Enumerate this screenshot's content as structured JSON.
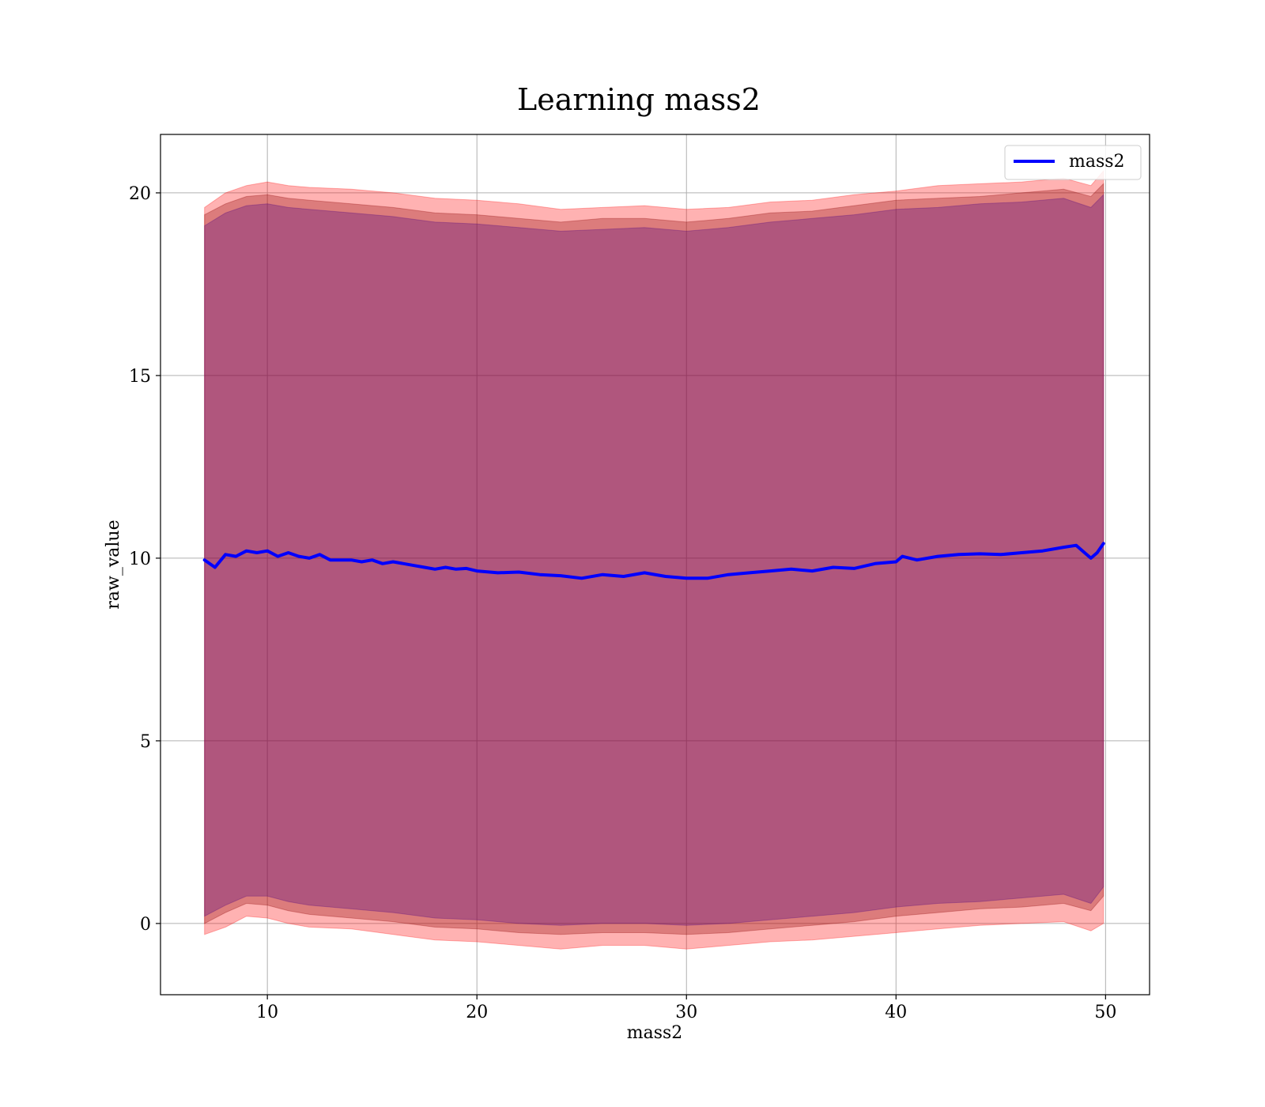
{
  "chart_data": {
    "type": "line",
    "title": "Learning mass2",
    "xlabel": "mass2",
    "ylabel": "raw_value",
    "xlim": [
      4.9,
      52.1
    ],
    "ylim": [
      -1.95,
      21.6
    ],
    "xticks": [
      10,
      20,
      30,
      40,
      50
    ],
    "yticks": [
      0,
      5,
      10,
      15,
      20
    ],
    "xtick_labels": [
      "10",
      "20",
      "30",
      "40",
      "50"
    ],
    "ytick_labels": [
      "0",
      "5",
      "10",
      "15",
      "20"
    ],
    "grid": true,
    "legend_position": "top-right",
    "series": [
      {
        "name": "mass2",
        "color": "#0000ff",
        "x": [
          7.0,
          7.5,
          8.0,
          8.5,
          9.0,
          9.5,
          10.0,
          10.5,
          11.0,
          11.5,
          12.0,
          12.5,
          13.0,
          13.5,
          14.0,
          14.5,
          15.0,
          15.5,
          16.0,
          16.5,
          17.0,
          17.5,
          18.0,
          18.5,
          19.0,
          19.5,
          20.0,
          21.0,
          22.0,
          23.0,
          24.0,
          25.0,
          26.0,
          27.0,
          28.0,
          29.0,
          30.0,
          31.0,
          32.0,
          33.0,
          34.0,
          35.0,
          36.0,
          37.0,
          38.0,
          39.0,
          40.0,
          40.3,
          41.0,
          42.0,
          43.0,
          44.0,
          45.0,
          46.0,
          47.0,
          48.0,
          48.6,
          49.0,
          49.3,
          49.6,
          49.9
        ],
        "values": [
          9.95,
          9.75,
          10.1,
          10.05,
          10.2,
          10.15,
          10.2,
          10.05,
          10.15,
          10.05,
          10.0,
          10.1,
          9.95,
          9.95,
          9.95,
          9.9,
          9.95,
          9.85,
          9.9,
          9.85,
          9.8,
          9.75,
          9.7,
          9.75,
          9.7,
          9.72,
          9.65,
          9.6,
          9.62,
          9.55,
          9.52,
          9.45,
          9.55,
          9.5,
          9.6,
          9.5,
          9.45,
          9.45,
          9.55,
          9.6,
          9.65,
          9.7,
          9.65,
          9.75,
          9.72,
          9.85,
          9.9,
          10.05,
          9.95,
          10.05,
          10.1,
          10.12,
          10.1,
          10.15,
          10.2,
          10.3,
          10.35,
          10.15,
          10.0,
          10.15,
          10.4
        ]
      }
    ],
    "bands": [
      {
        "color": "#ff0000",
        "opacity": 0.3,
        "x": [
          7.0,
          8.0,
          9.0,
          10.0,
          11.0,
          12.0,
          14.0,
          16.0,
          18.0,
          20.0,
          22.0,
          24.0,
          26.0,
          28.0,
          30.0,
          32.0,
          34.0,
          36.0,
          38.0,
          40.0,
          42.0,
          44.0,
          46.0,
          48.0,
          49.3,
          49.9
        ],
        "upper": [
          19.6,
          20.0,
          20.2,
          20.3,
          20.2,
          20.15,
          20.1,
          20.0,
          19.85,
          19.8,
          19.7,
          19.55,
          19.6,
          19.65,
          19.55,
          19.6,
          19.75,
          19.8,
          19.95,
          20.05,
          20.2,
          20.25,
          20.3,
          20.4,
          20.2,
          20.6
        ],
        "lower": [
          -0.3,
          -0.1,
          0.2,
          0.15,
          0.0,
          -0.1,
          -0.15,
          -0.3,
          -0.45,
          -0.5,
          -0.6,
          -0.7,
          -0.6,
          -0.6,
          -0.7,
          -0.6,
          -0.5,
          -0.45,
          -0.35,
          -0.25,
          -0.15,
          -0.05,
          0.0,
          0.05,
          -0.2,
          0.0
        ]
      },
      {
        "color": "#8b0000",
        "opacity": 0.3,
        "x": [
          7.0,
          8.0,
          9.0,
          10.0,
          11.0,
          12.0,
          14.0,
          16.0,
          18.0,
          20.0,
          22.0,
          24.0,
          26.0,
          28.0,
          30.0,
          32.0,
          34.0,
          36.0,
          38.0,
          40.0,
          42.0,
          44.0,
          46.0,
          48.0,
          49.3,
          49.9
        ],
        "upper": [
          19.4,
          19.7,
          19.9,
          19.95,
          19.85,
          19.8,
          19.7,
          19.6,
          19.45,
          19.4,
          19.3,
          19.2,
          19.3,
          19.3,
          19.2,
          19.3,
          19.45,
          19.5,
          19.65,
          19.8,
          19.85,
          19.9,
          20.0,
          20.1,
          19.9,
          20.25
        ],
        "lower": [
          0.0,
          0.3,
          0.55,
          0.5,
          0.35,
          0.25,
          0.15,
          0.05,
          -0.1,
          -0.15,
          -0.25,
          -0.3,
          -0.25,
          -0.25,
          -0.3,
          -0.25,
          -0.15,
          -0.05,
          0.05,
          0.2,
          0.3,
          0.4,
          0.45,
          0.55,
          0.35,
          0.75
        ]
      },
      {
        "color": "#4b0082",
        "opacity": 0.3,
        "x": [
          7.0,
          8.0,
          9.0,
          10.0,
          11.0,
          12.0,
          14.0,
          16.0,
          18.0,
          20.0,
          22.0,
          24.0,
          26.0,
          28.0,
          30.0,
          32.0,
          34.0,
          36.0,
          38.0,
          40.0,
          42.0,
          44.0,
          46.0,
          48.0,
          49.3,
          49.9
        ],
        "upper": [
          19.1,
          19.45,
          19.65,
          19.7,
          19.6,
          19.55,
          19.45,
          19.35,
          19.2,
          19.15,
          19.05,
          18.95,
          19.0,
          19.05,
          18.95,
          19.05,
          19.2,
          19.3,
          19.4,
          19.55,
          19.6,
          19.7,
          19.75,
          19.85,
          19.6,
          19.95
        ],
        "lower": [
          0.2,
          0.5,
          0.75,
          0.75,
          0.6,
          0.5,
          0.4,
          0.3,
          0.15,
          0.1,
          0.0,
          -0.05,
          0.0,
          0.0,
          -0.05,
          0.0,
          0.1,
          0.2,
          0.3,
          0.45,
          0.55,
          0.6,
          0.7,
          0.8,
          0.55,
          1.0
        ]
      }
    ]
  }
}
